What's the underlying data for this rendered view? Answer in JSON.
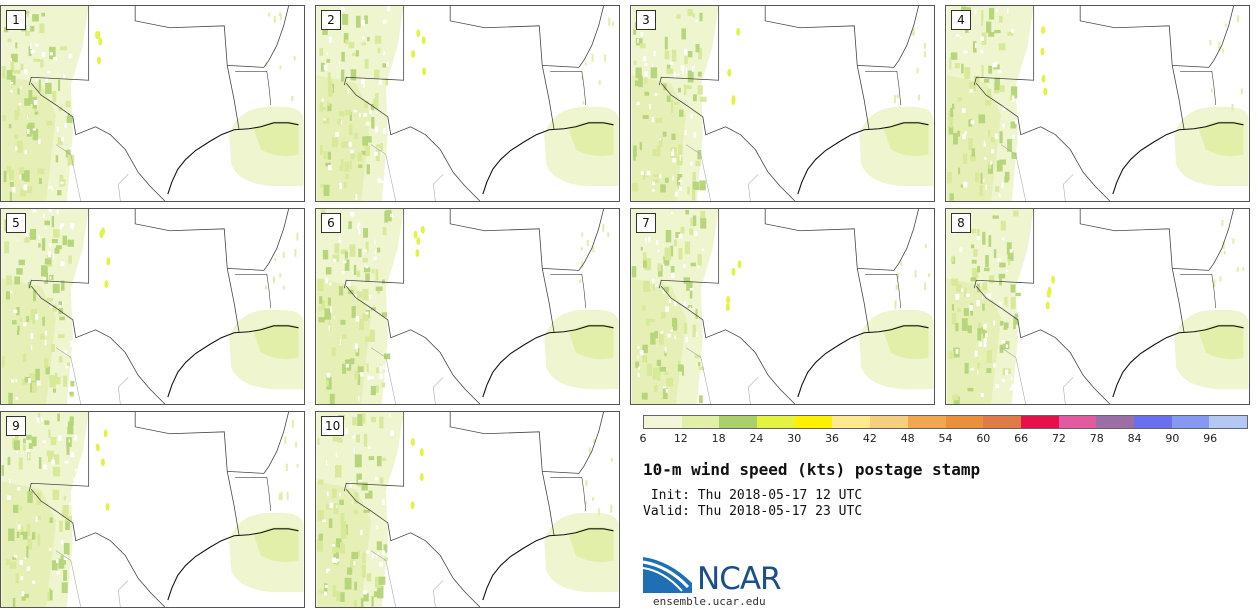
{
  "panels": [
    {
      "label": "1"
    },
    {
      "label": "2"
    },
    {
      "label": "3"
    },
    {
      "label": "4"
    },
    {
      "label": "5"
    },
    {
      "label": "6"
    },
    {
      "label": "7"
    },
    {
      "label": "8"
    },
    {
      "label": "9"
    },
    {
      "label": "10"
    }
  ],
  "colorbar": {
    "colors": [
      "#f3f7d8",
      "#e2efa9",
      "#a9d06b",
      "#e4f242",
      "#fdf000",
      "#fde98e",
      "#f5cf7e",
      "#f1a650",
      "#ea8f3c",
      "#e07a46",
      "#e8104b",
      "#e25aa0",
      "#9c6ea6",
      "#6a6ff0",
      "#8699f2",
      "#b4c8f4"
    ],
    "ticks": [
      "6",
      "12",
      "18",
      "24",
      "30",
      "36",
      "42",
      "48",
      "54",
      "60",
      "66",
      "72",
      "78",
      "84",
      "90",
      "96"
    ]
  },
  "title": "10-m wind speed (kts) postage stamp",
  "init": " Init: Thu 2018-05-17 12 UTC",
  "valid": "Valid: Thu 2018-05-17 23 UTC",
  "logo": {
    "text": "NCAR",
    "site": "ensemble.ucar.edu"
  }
}
